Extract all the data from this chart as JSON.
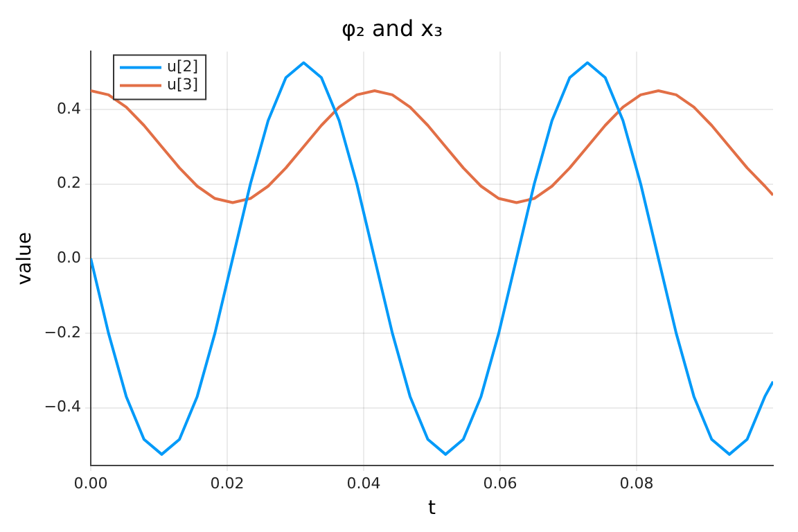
{
  "chart_data": {
    "type": "line",
    "title": "φ₂ and x₃",
    "xlabel": "t",
    "ylabel": "value",
    "x": [
      0,
      0.0026,
      0.0052,
      0.0078,
      0.0104,
      0.013,
      0.0156,
      0.0182,
      0.0208,
      0.0234,
      0.026,
      0.0286,
      0.0312,
      0.0338,
      0.0364,
      0.039,
      0.0416,
      0.0442,
      0.0468,
      0.0494,
      0.052,
      0.0546,
      0.0572,
      0.0598,
      0.0624,
      0.065,
      0.0676,
      0.0702,
      0.0728,
      0.0754,
      0.078,
      0.0806,
      0.0832,
      0.0858,
      0.0884,
      0.091,
      0.0936,
      0.0962,
      0.0988,
      0.1
    ],
    "series": [
      {
        "name": "u[2]",
        "color": "#009af9",
        "values": [
          0,
          -0.2,
          -0.37,
          -0.485,
          -0.525,
          -0.485,
          -0.37,
          -0.2,
          0,
          0.2,
          0.37,
          0.485,
          0.525,
          0.485,
          0.37,
          0.2,
          0,
          -0.2,
          -0.37,
          -0.485,
          -0.525,
          -0.485,
          -0.37,
          -0.2,
          0,
          0.2,
          0.37,
          0.485,
          0.525,
          0.485,
          0.37,
          0.2,
          0,
          -0.2,
          -0.37,
          -0.485,
          -0.525,
          -0.485,
          -0.37,
          -0.33
        ]
      },
      {
        "name": "u[3]",
        "color": "#e26f46",
        "values": [
          0.45,
          0.439,
          0.406,
          0.357,
          0.3,
          0.243,
          0.194,
          0.161,
          0.15,
          0.161,
          0.194,
          0.243,
          0.3,
          0.357,
          0.406,
          0.439,
          0.45,
          0.439,
          0.406,
          0.357,
          0.3,
          0.243,
          0.194,
          0.161,
          0.15,
          0.161,
          0.194,
          0.243,
          0.3,
          0.357,
          0.406,
          0.439,
          0.45,
          0.439,
          0.406,
          0.357,
          0.3,
          0.243,
          0.194,
          0.17
        ]
      }
    ],
    "xlim": [
      0,
      0.1
    ],
    "xticks": [
      {
        "value": 0,
        "label": "0.00"
      },
      {
        "value": 0.02,
        "label": "0.02"
      },
      {
        "value": 0.04,
        "label": "0.04"
      },
      {
        "value": 0.06,
        "label": "0.06"
      },
      {
        "value": 0.08,
        "label": "0.08"
      }
    ],
    "ylim": [
      -0.555,
      0.555
    ],
    "yticks": [
      {
        "value": -0.4,
        "label": "−0.4"
      },
      {
        "value": -0.2,
        "label": "−0.2"
      },
      {
        "value": 0,
        "label": "0.0"
      },
      {
        "value": 0.2,
        "label": "0.2"
      },
      {
        "value": 0.4,
        "label": "0.4"
      }
    ],
    "grid": true,
    "legend": "top left",
    "marker": "none",
    "line_style": "solid"
  }
}
